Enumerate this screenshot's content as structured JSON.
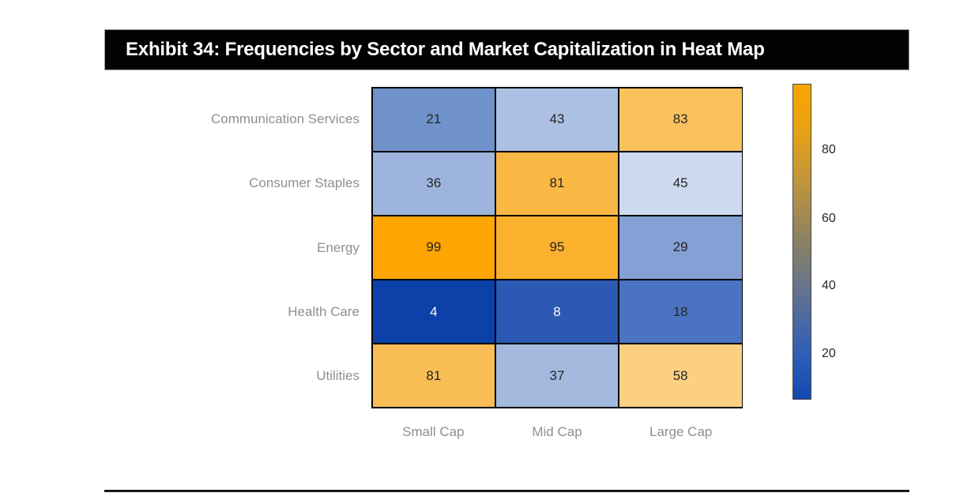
{
  "title_bar": {
    "text": "Exhibit 34: Frequencies by Sector and Market Capitalization in Heat Map"
  },
  "chart_data": {
    "type": "heatmap",
    "title": "Exhibit 34: Frequencies by Sector and Market Capitalization in Heat Map",
    "rows": [
      "Communication Services",
      "Consumer Staples",
      "Energy",
      "Health Care",
      "Utilities"
    ],
    "columns": [
      "Small Cap",
      "Mid Cap",
      "Large Cap"
    ],
    "values": [
      [
        21,
        43,
        83
      ],
      [
        36,
        81,
        45
      ],
      [
        99,
        95,
        29
      ],
      [
        4,
        8,
        18
      ],
      [
        81,
        37,
        58
      ]
    ],
    "cell_colors": [
      [
        "#7092cb",
        "#abc0e3",
        "#fac25c"
      ],
      [
        "#9db5dc",
        "#f8b843",
        "#cdd9ef"
      ],
      [
        "#fda502",
        "#fbb02e",
        "#84a0d4"
      ],
      [
        "#0b41a8",
        "#2b59b3",
        "#4a74c1"
      ],
      [
        "#f9bd55",
        "#a3b9de",
        "#fcd083"
      ]
    ],
    "cell_text_colors": [
      [
        "#262626",
        "#262626",
        "#262626"
      ],
      [
        "#262626",
        "#262626",
        "#262626"
      ],
      [
        "#262626",
        "#262626",
        "#262626"
      ],
      [
        "#ffffff",
        "#ffffff",
        "#262626"
      ],
      [
        "#262626",
        "#262626",
        "#262626"
      ]
    ],
    "colorbar": {
      "orientation": "vertical",
      "ticks": [
        "80",
        "60",
        "40",
        "20"
      ],
      "gradient_stops": [
        {
          "color": "#f7a401",
          "pos": "0%"
        },
        {
          "color": "#eca30f",
          "pos": "12%"
        },
        {
          "color": "#c29539",
          "pos": "30%"
        },
        {
          "color": "#8a8164",
          "pos": "50%"
        },
        {
          "color": "#5e7094",
          "pos": "68%"
        },
        {
          "color": "#2e5eb6",
          "pos": "86%"
        },
        {
          "color": "#1448b0",
          "pos": "100%"
        }
      ]
    },
    "legend_position": "right",
    "grid_line_color": "#000000"
  }
}
